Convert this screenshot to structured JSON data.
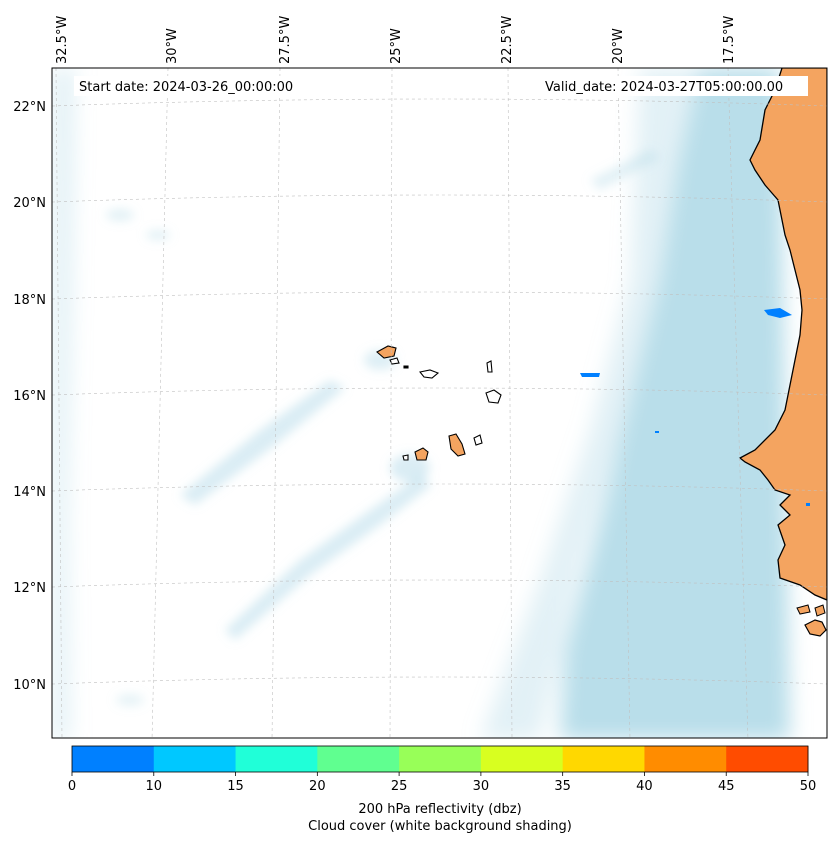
{
  "header": {
    "start_date": "Start date: 2024-03-26_00:00:00",
    "valid_date": "Valid_date: 2024-03-27T05:00:00.00"
  },
  "map": {
    "lon_labels": [
      "32.5°W",
      "30°W",
      "27.5°W",
      "25°W",
      "22.5°W",
      "20°W",
      "17.5°W"
    ],
    "lat_labels": [
      "22°N",
      "20°N",
      "18°N",
      "16°N",
      "14°N",
      "12°N",
      "10°N"
    ],
    "colors": {
      "land": "#f4a460",
      "cloud": "#add8e6",
      "coastline": "#000000",
      "gridline": "#b0b0b0"
    }
  },
  "colorbar": {
    "ticks": [
      "0",
      "10",
      "15",
      "20",
      "25",
      "30",
      "35",
      "40",
      "45",
      "50"
    ],
    "colors": [
      "#0080ff",
      "#00c8ff",
      "#20ffd8",
      "#60ff90",
      "#98ff58",
      "#d8ff20",
      "#ffd800",
      "#ff8c00",
      "#ff4c00"
    ],
    "label_line1": "200 hPa reflectivity (dbz)",
    "label_line2": "Cloud cover (white background shading)"
  }
}
